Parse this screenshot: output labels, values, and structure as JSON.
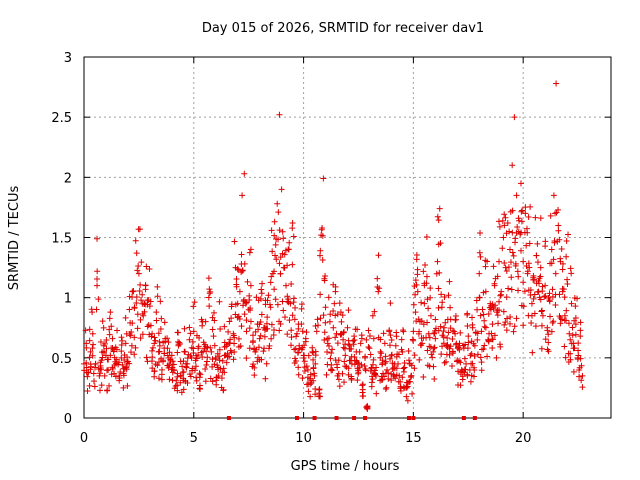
{
  "chart_data": {
    "type": "scatter",
    "title": "Day 015 of 2026, SRMTID for receiver dav1",
    "xlabel": "GPS time / hours",
    "ylabel": "SRMTID / TECUs",
    "xlim": [
      0,
      24
    ],
    "ylim": [
      0,
      3
    ],
    "xticks": [
      0,
      5,
      10,
      15,
      20
    ],
    "yticks": [
      0,
      0.5,
      1,
      1.5,
      2,
      2.5,
      3
    ],
    "xtick_labels": [
      "0",
      "5",
      "10",
      "15",
      "20"
    ],
    "ytick_labels": [
      "0",
      "0.5",
      "1",
      "1.5",
      "2",
      "2.5",
      "3"
    ],
    "grid": true,
    "marker": "+",
    "color": "#e00000",
    "series": [
      {
        "name": "SRMTID",
        "points": [
          [
            0.0,
            0.45
          ],
          [
            0.1,
            0.62
          ],
          [
            0.2,
            0.38
          ],
          [
            0.3,
            0.55
          ],
          [
            0.4,
            0.7
          ],
          [
            0.5,
            0.42
          ],
          [
            0.6,
            1.22
          ],
          [
            0.7,
            0.35
          ],
          [
            0.8,
            0.48
          ],
          [
            0.9,
            0.6
          ],
          [
            1.0,
            0.52
          ],
          [
            1.1,
            0.4
          ],
          [
            1.2,
            0.88
          ],
          [
            1.3,
            0.66
          ],
          [
            1.4,
            0.44
          ],
          [
            1.5,
            0.57
          ],
          [
            1.6,
            0.35
          ],
          [
            1.7,
            0.5
          ],
          [
            1.8,
            0.41
          ],
          [
            1.9,
            0.62
          ],
          [
            2.0,
            0.47
          ],
          [
            2.1,
            0.79
          ],
          [
            2.2,
            1.05
          ],
          [
            2.3,
            0.92
          ],
          [
            2.4,
            1.37
          ],
          [
            2.5,
            1.2
          ],
          [
            2.6,
            0.98
          ],
          [
            2.7,
            0.85
          ],
          [
            2.8,
            1.1
          ],
          [
            2.9,
            0.76
          ],
          [
            3.0,
            0.93
          ],
          [
            3.1,
            0.7
          ],
          [
            3.2,
            0.62
          ],
          [
            3.3,
            0.81
          ],
          [
            3.4,
            0.55
          ],
          [
            3.5,
            0.74
          ],
          [
            3.6,
            0.48
          ],
          [
            3.7,
            0.66
          ],
          [
            3.8,
            0.58
          ],
          [
            3.9,
            0.44
          ],
          [
            4.0,
            0.52
          ],
          [
            4.1,
            0.4
          ],
          [
            4.2,
            0.31
          ],
          [
            4.3,
            0.6
          ],
          [
            4.4,
            0.47
          ],
          [
            4.5,
            0.38
          ],
          [
            4.6,
            0.55
          ],
          [
            4.7,
            0.45
          ],
          [
            4.8,
            0.65
          ],
          [
            4.9,
            0.5
          ],
          [
            5.0,
            0.72
          ],
          [
            5.1,
            0.43
          ],
          [
            5.2,
            0.58
          ],
          [
            5.3,
            0.36
          ],
          [
            5.4,
            0.8
          ],
          [
            5.5,
            0.61
          ],
          [
            5.6,
            0.47
          ],
          [
            5.7,
            0.93
          ],
          [
            5.8,
            0.55
          ],
          [
            5.9,
            0.68
          ],
          [
            6.0,
            0.5
          ],
          [
            6.1,
            0.42
          ],
          [
            6.2,
            0.74
          ],
          [
            6.3,
            0.38
          ],
          [
            6.4,
            0.59
          ],
          [
            6.5,
            0.46
          ],
          [
            6.6,
            0.62
          ],
          [
            6.7,
            0.83
          ],
          [
            6.8,
            0.7
          ],
          [
            6.9,
            1.25
          ],
          [
            7.0,
            0.95
          ],
          [
            7.1,
            1.05
          ],
          [
            7.2,
            1.85
          ],
          [
            7.3,
            2.03
          ],
          [
            7.4,
            0.72
          ],
          [
            7.5,
            0.9
          ],
          [
            7.6,
            1.1
          ],
          [
            7.7,
            0.64
          ],
          [
            7.8,
            0.55
          ],
          [
            7.9,
            0.78
          ],
          [
            8.0,
            0.66
          ],
          [
            8.1,
            0.86
          ],
          [
            8.2,
            0.58
          ],
          [
            8.3,
            0.74
          ],
          [
            8.4,
            1.02
          ],
          [
            8.5,
            0.92
          ],
          [
            8.6,
            1.2
          ],
          [
            8.7,
            1.35
          ],
          [
            8.8,
            1.78
          ],
          [
            8.9,
            2.52
          ],
          [
            9.0,
            1.9
          ],
          [
            9.1,
            1.25
          ],
          [
            9.2,
            1.1
          ],
          [
            9.3,
            1.4
          ],
          [
            9.4,
            0.95
          ],
          [
            9.5,
            1.62
          ],
          [
            9.6,
            0.82
          ],
          [
            9.7,
            0.7
          ],
          [
            9.8,
            0.6
          ],
          [
            9.9,
            0.78
          ],
          [
            10.0,
            0.52
          ],
          [
            10.1,
            0.66
          ],
          [
            10.2,
            0.4
          ],
          [
            10.3,
            0.28
          ],
          [
            10.4,
            0.55
          ],
          [
            10.5,
            0.35
          ],
          [
            10.6,
            0.72
          ],
          [
            10.7,
            0.18
          ],
          [
            10.8,
            1.52
          ],
          [
            10.9,
            1.99
          ],
          [
            11.0,
            0.92
          ],
          [
            11.1,
            0.62
          ],
          [
            11.2,
            0.8
          ],
          [
            11.3,
            0.57
          ],
          [
            11.4,
            0.95
          ],
          [
            11.5,
            0.7
          ],
          [
            11.6,
            0.48
          ],
          [
            11.7,
            0.88
          ],
          [
            11.8,
            0.65
          ],
          [
            11.9,
            0.52
          ],
          [
            12.0,
            0.75
          ],
          [
            12.1,
            0.6
          ],
          [
            12.2,
            0.45
          ],
          [
            12.3,
            0.68
          ],
          [
            12.4,
            0.55
          ],
          [
            12.5,
            0.38
          ],
          [
            12.6,
            0.62
          ],
          [
            12.7,
            0.28
          ],
          [
            12.8,
            0.5
          ],
          [
            12.9,
            0.1
          ],
          [
            13.0,
            0.58
          ],
          [
            13.1,
            0.42
          ],
          [
            13.2,
            0.66
          ],
          [
            13.3,
            0.35
          ],
          [
            13.4,
            1.05
          ],
          [
            13.5,
            0.55
          ],
          [
            13.6,
            0.48
          ],
          [
            13.7,
            0.62
          ],
          [
            13.8,
            0.4
          ],
          [
            13.9,
            0.72
          ],
          [
            14.0,
            0.52
          ],
          [
            14.1,
            0.36
          ],
          [
            14.2,
            0.6
          ],
          [
            14.3,
            0.45
          ],
          [
            14.4,
            0.3
          ],
          [
            14.5,
            0.55
          ],
          [
            14.6,
            0.42
          ],
          [
            14.7,
            0.25
          ],
          [
            14.8,
            0.48
          ],
          [
            14.9,
            0.35
          ],
          [
            15.0,
            0.72
          ],
          [
            15.1,
            0.88
          ],
          [
            15.2,
            1.05
          ],
          [
            15.3,
            0.8
          ],
          [
            15.4,
            0.62
          ],
          [
            15.5,
            0.95
          ],
          [
            15.6,
            1.12
          ],
          [
            15.7,
            0.7
          ],
          [
            15.8,
            0.85
          ],
          [
            15.9,
            0.55
          ],
          [
            16.0,
            0.66
          ],
          [
            16.1,
            1.3
          ],
          [
            16.2,
            1.74
          ],
          [
            16.3,
            0.92
          ],
          [
            16.4,
            0.75
          ],
          [
            16.5,
            0.6
          ],
          [
            16.6,
            1.02
          ],
          [
            16.7,
            0.82
          ],
          [
            16.8,
            0.55
          ],
          [
            16.9,
            0.7
          ],
          [
            17.0,
            0.48
          ],
          [
            17.1,
            0.62
          ],
          [
            17.2,
            0.4
          ],
          [
            17.3,
            0.58
          ],
          [
            17.4,
            0.45
          ],
          [
            17.5,
            0.68
          ],
          [
            17.6,
            0.52
          ],
          [
            17.7,
            0.75
          ],
          [
            17.8,
            0.6
          ],
          [
            17.9,
            0.9
          ],
          [
            18.0,
            1.2
          ],
          [
            18.1,
            0.72
          ],
          [
            18.2,
            0.86
          ],
          [
            18.3,
            1.05
          ],
          [
            18.4,
            0.65
          ],
          [
            18.5,
            0.95
          ],
          [
            18.6,
            0.78
          ],
          [
            18.7,
            1.1
          ],
          [
            18.8,
            0.88
          ],
          [
            18.9,
            1.3
          ],
          [
            19.0,
            1.05
          ],
          [
            19.1,
            1.5
          ],
          [
            19.2,
            1.25
          ],
          [
            19.3,
            1.62
          ],
          [
            19.4,
            1.4
          ],
          [
            19.5,
            2.1
          ],
          [
            19.6,
            2.5
          ],
          [
            19.7,
            1.85
          ],
          [
            19.8,
            1.55
          ],
          [
            19.9,
            1.95
          ],
          [
            20.0,
            1.3
          ],
          [
            20.1,
            1.7
          ],
          [
            20.2,
            1.2
          ],
          [
            20.3,
            1.45
          ],
          [
            20.4,
            0.95
          ],
          [
            20.5,
            1.15
          ],
          [
            20.6,
            1.35
          ],
          [
            20.7,
            1.05
          ],
          [
            20.8,
            1.25
          ],
          [
            20.9,
            0.85
          ],
          [
            21.0,
            1.1
          ],
          [
            21.1,
            0.75
          ],
          [
            21.2,
            0.98
          ],
          [
            21.3,
            1.4
          ],
          [
            21.4,
            1.85
          ],
          [
            21.5,
            2.78
          ],
          [
            21.6,
            1.6
          ],
          [
            21.7,
            1.3
          ],
          [
            21.8,
            1.05
          ],
          [
            21.9,
            0.85
          ],
          [
            22.0,
            1.15
          ],
          [
            22.1,
            0.7
          ],
          [
            22.2,
            0.95
          ],
          [
            22.3,
            0.62
          ],
          [
            22.4,
            0.78
          ],
          [
            22.5,
            0.5
          ],
          [
            22.6,
            0.68
          ],
          [
            22.7,
            0.35
          ]
        ]
      }
    ],
    "zero_points_x": [
      6.6,
      9.7,
      10.5,
      11.5,
      12.3,
      12.8,
      14.8,
      15.0,
      17.3,
      17.8
    ]
  }
}
